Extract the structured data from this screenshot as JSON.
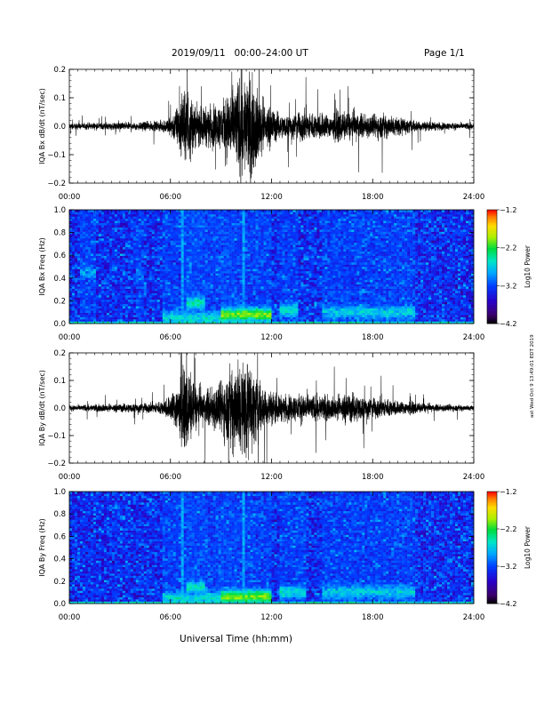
{
  "header": {
    "date_range": "2019/09/11   00:00–24:00 UT",
    "page": "Page 1/1"
  },
  "stamp": "ast Wed Oct 9 13:49:01 EDT 2019",
  "xlabel_common": "Universal Time (hh:mm)",
  "chart_data": [
    {
      "type": "line",
      "name": "bx-waveform",
      "ylabel": "IQA Bx dB/dt (nT/sec)",
      "x_unit": "hours UT",
      "xlim": [
        0,
        24
      ],
      "ylim": [
        -0.2,
        0.2
      ],
      "xticks": [
        0,
        6,
        12,
        18,
        24
      ],
      "xtick_labels": [
        "00:00",
        "06:00",
        "12:00",
        "18:00",
        "24:00"
      ],
      "yticks": [
        -0.2,
        -0.1,
        0.0,
        0.1,
        0.2
      ],
      "ytick_labels": [
        "−0.2",
        "−0.1",
        "0.0",
        "0.1",
        "0.2"
      ],
      "envelope_hours": [
        0,
        1,
        2,
        3,
        4,
        5,
        5.5,
        6,
        6.5,
        7,
        7.5,
        8,
        8.5,
        9,
        9.5,
        10,
        10.5,
        11,
        11.5,
        12,
        12.5,
        13,
        13.5,
        14,
        14.5,
        15,
        15.5,
        16,
        16.5,
        17,
        17.5,
        18,
        18.5,
        19,
        19.5,
        20,
        21,
        22,
        23,
        24
      ],
      "envelope_amplitude": [
        0.015,
        0.018,
        0.018,
        0.02,
        0.022,
        0.025,
        0.03,
        0.05,
        0.12,
        0.22,
        0.1,
        0.1,
        0.11,
        0.12,
        0.2,
        0.25,
        0.28,
        0.23,
        0.14,
        0.1,
        0.06,
        0.06,
        0.07,
        0.09,
        0.07,
        0.075,
        0.06,
        0.08,
        0.07,
        0.08,
        0.065,
        0.06,
        0.07,
        0.06,
        0.05,
        0.04,
        0.025,
        0.02,
        0.018,
        0.018
      ]
    },
    {
      "type": "heatmap",
      "name": "bx-spectrogram",
      "ylabel": "IQA Bx Freq (Hz)",
      "x_unit": "hours UT",
      "xlim": [
        0,
        24
      ],
      "ylim": [
        0.0,
        1.0
      ],
      "xticks": [
        0,
        6,
        12,
        18,
        24
      ],
      "xtick_labels": [
        "00:00",
        "06:00",
        "12:00",
        "18:00",
        "24:00"
      ],
      "yticks": [
        0.0,
        0.2,
        0.4,
        0.6,
        0.8,
        1.0
      ],
      "ytick_labels": [
        "0.0",
        "0.2",
        "0.4",
        "0.6",
        "0.8",
        "1.0"
      ],
      "colorbar": {
        "label": "Log10 Power",
        "min": -4.2,
        "max": -1.2,
        "ticks": [
          -1.2,
          -2.2,
          -3.2,
          -4.2
        ],
        "tick_labels": [
          "−1.2",
          "−2.2",
          "−3.2",
          "−4.2"
        ]
      },
      "background_log_power": -3.3,
      "enhancements": [
        {
          "time_start": 0.7,
          "time_end": 1.5,
          "freq": 0.45,
          "log_power": -2.9
        },
        {
          "time_start": 4.0,
          "time_end": 4.4,
          "freq": 0.43,
          "log_power": -3.1
        },
        {
          "time_start": 5.5,
          "time_end": 10.0,
          "freq": 0.05,
          "log_power": -2.6
        },
        {
          "time_start": 7.0,
          "time_end": 8.0,
          "freq": 0.18,
          "log_power": -2.5
        },
        {
          "time_start": 9.0,
          "time_end": 12.0,
          "freq": 0.08,
          "log_power": -2.0
        },
        {
          "time_start": 12.5,
          "time_end": 13.5,
          "freq": 0.12,
          "log_power": -2.6
        },
        {
          "time_start": 15.0,
          "time_end": 20.5,
          "freq": 0.1,
          "log_power": -2.7
        }
      ],
      "vertical_streaks_hours": [
        6.7,
        10.4
      ]
    },
    {
      "type": "line",
      "name": "by-waveform",
      "ylabel": "IQA By dB/dt (nT/sec)",
      "x_unit": "hours UT",
      "xlim": [
        0,
        24
      ],
      "ylim": [
        -0.2,
        0.2
      ],
      "xticks": [
        0,
        6,
        12,
        18,
        24
      ],
      "xtick_labels": [
        "00:00",
        "06:00",
        "12:00",
        "18:00",
        "24:00"
      ],
      "yticks": [
        -0.2,
        -0.1,
        0.0,
        0.1,
        0.2
      ],
      "ytick_labels": [
        "−0.2",
        "−0.1",
        "0.0",
        "0.1",
        "0.2"
      ],
      "envelope_hours": [
        0,
        1,
        2,
        3,
        4,
        5,
        5.5,
        6,
        6.5,
        7,
        7.5,
        8,
        8.5,
        9,
        9.5,
        10,
        10.5,
        11,
        11.5,
        12,
        12.5,
        13,
        13.5,
        14,
        14.5,
        15,
        15.5,
        16,
        16.5,
        17,
        17.5,
        18,
        18.5,
        19,
        19.5,
        20,
        21,
        22,
        23,
        24
      ],
      "envelope_amplitude": [
        0.015,
        0.018,
        0.02,
        0.022,
        0.025,
        0.03,
        0.04,
        0.07,
        0.15,
        0.22,
        0.12,
        0.1,
        0.12,
        0.14,
        0.22,
        0.28,
        0.26,
        0.2,
        0.12,
        0.09,
        0.07,
        0.07,
        0.075,
        0.08,
        0.07,
        0.075,
        0.06,
        0.07,
        0.08,
        0.075,
        0.06,
        0.055,
        0.06,
        0.05,
        0.04,
        0.035,
        0.025,
        0.02,
        0.018,
        0.015
      ]
    },
    {
      "type": "heatmap",
      "name": "by-spectrogram",
      "ylabel": "IQA By Freq (Hz)",
      "x_unit": "hours UT",
      "xlim": [
        0,
        24
      ],
      "ylim": [
        0.0,
        1.0
      ],
      "xticks": [
        0,
        6,
        12,
        18,
        24
      ],
      "xtick_labels": [
        "00:00",
        "06:00",
        "12:00",
        "18:00",
        "24:00"
      ],
      "yticks": [
        0.0,
        0.2,
        0.4,
        0.6,
        0.8,
        1.0
      ],
      "ytick_labels": [
        "0.0",
        "0.2",
        "0.4",
        "0.6",
        "0.8",
        "1.0"
      ],
      "colorbar": {
        "label": "Log10 Power",
        "min": -4.2,
        "max": -1.2,
        "ticks": [
          -1.2,
          -2.2,
          -3.2,
          -4.2
        ],
        "tick_labels": [
          "−1.2",
          "−2.2",
          "−3.2",
          "−4.2"
        ]
      },
      "background_log_power": -3.3,
      "enhancements": [
        {
          "time_start": 5.5,
          "time_end": 10.0,
          "freq": 0.05,
          "log_power": -2.6
        },
        {
          "time_start": 7.0,
          "time_end": 8.0,
          "freq": 0.15,
          "log_power": -2.5
        },
        {
          "time_start": 9.0,
          "time_end": 12.0,
          "freq": 0.06,
          "log_power": -2.0
        },
        {
          "time_start": 12.5,
          "time_end": 14.0,
          "freq": 0.1,
          "log_power": -2.6
        },
        {
          "time_start": 15.0,
          "time_end": 20.5,
          "freq": 0.1,
          "log_power": -2.7
        }
      ],
      "vertical_streaks_hours": [
        6.7,
        10.4
      ]
    }
  ]
}
